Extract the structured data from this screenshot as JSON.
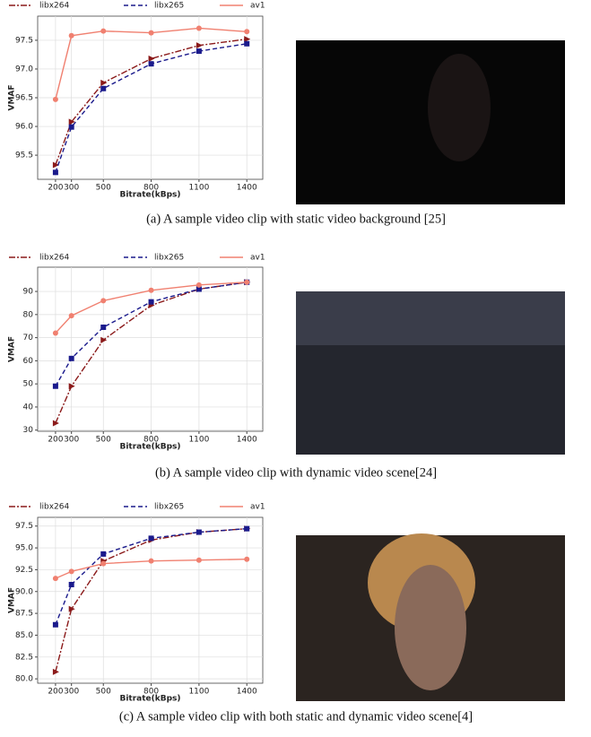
{
  "chart_data": [
    {
      "type": "line",
      "x": [
        200,
        300,
        500,
        800,
        1100,
        1400
      ],
      "xlim": [
        88,
        1500
      ],
      "xticks": [
        200,
        300,
        500,
        800,
        1100,
        1400
      ],
      "ylim": [
        95.08,
        97.92
      ],
      "yticks": [
        95.5,
        {
          "value": 96.0,
          "label": "96.0"
        },
        96.5,
        {
          "value": 97.0,
          "label": "97.0"
        },
        97.5
      ],
      "xlabel": "Bitrate(kBps)",
      "ylabel": "VMAF",
      "grid": true,
      "series": [
        {
          "name": "libx264",
          "color": "#8b1a1a",
          "values": [
            95.33,
            96.08,
            96.76,
            97.18,
            97.41,
            97.52
          ]
        },
        {
          "name": "libx265",
          "color": "#1a1a8c",
          "values": [
            95.2,
            95.99,
            96.66,
            97.09,
            97.31,
            97.44
          ]
        },
        {
          "name": "av1",
          "color": "#f08070",
          "values": [
            96.47,
            97.58,
            97.66,
            97.63,
            97.71,
            97.65
          ]
        }
      ]
    },
    {
      "type": "line",
      "x": [
        200,
        300,
        500,
        800,
        1100,
        1400
      ],
      "xlim": [
        88,
        1500
      ],
      "xticks": [
        200,
        300,
        500,
        800,
        1100,
        1400
      ],
      "ylim": [
        29.5,
        100.5
      ],
      "yticks": [
        30,
        40,
        50,
        60,
        70,
        80,
        90
      ],
      "xlabel": "Bitrate(kBps)",
      "ylabel": "VMAF",
      "grid": true,
      "series": [
        {
          "name": "libx264",
          "color": "#8b1a1a",
          "values": [
            33,
            49,
            69,
            84,
            91,
            94
          ]
        },
        {
          "name": "libx265",
          "color": "#1a1a8c",
          "values": [
            49,
            61,
            74.5,
            85.5,
            91,
            94
          ]
        },
        {
          "name": "av1",
          "color": "#f08070",
          "values": [
            72,
            79.5,
            86,
            90.5,
            92.8,
            94
          ]
        }
      ]
    },
    {
      "type": "line",
      "x": [
        200,
        300,
        500,
        800,
        1100,
        1400
      ],
      "xlim": [
        88,
        1500
      ],
      "xticks": [
        200,
        300,
        500,
        800,
        1100,
        1400
      ],
      "ylim": [
        79.5,
        98.5
      ],
      "yticks": [
        {
          "value": 80,
          "label": "80.0"
        },
        82.5,
        {
          "value": 85,
          "label": "85.0"
        },
        87.5,
        {
          "value": 90,
          "label": "90.0"
        },
        92.5,
        {
          "value": 95,
          "label": "95.0"
        },
        97.5
      ],
      "xlabel": "Bitrate(kBps)",
      "ylabel": "VMAF",
      "grid": true,
      "series": [
        {
          "name": "libx264",
          "color": "#8b1a1a",
          "values": [
            80.8,
            88,
            93.5,
            95.9,
            96.8,
            97.2
          ]
        },
        {
          "name": "libx265",
          "color": "#1a1a8c",
          "values": [
            86.2,
            90.8,
            94.3,
            96.1,
            96.8,
            97.2
          ]
        },
        {
          "name": "av1",
          "color": "#f08070",
          "values": [
            91.5,
            92.3,
            93.2,
            93.5,
            93.6,
            93.7
          ]
        }
      ]
    }
  ],
  "captions": [
    "(a)  A sample video clip with static video background [25]",
    "(b)  A sample video clip with dynamic video scene[24]",
    "(c)  A sample video clip with both static and dynamic video scene[4]"
  ]
}
